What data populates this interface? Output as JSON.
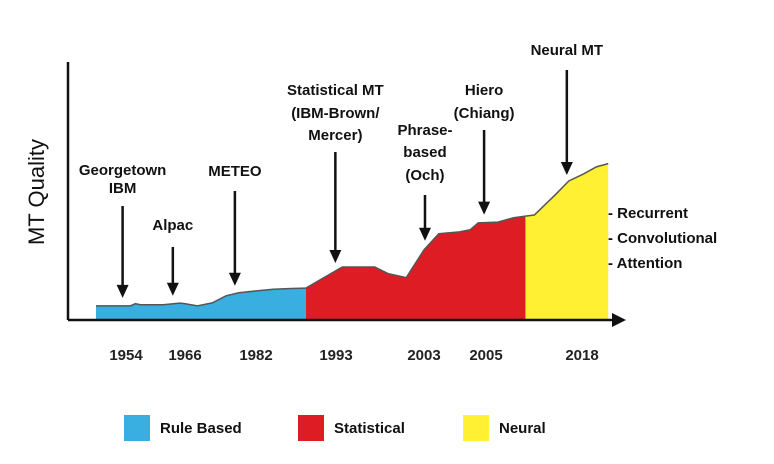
{
  "chart_data": {
    "type": "area",
    "title": "",
    "xlabel": "",
    "ylabel": "MT Quality",
    "x_ticks": [
      "1954",
      "1966",
      "1982",
      "1993",
      "2003",
      "2005",
      "2018"
    ],
    "series": [
      {
        "name": "Rule Based",
        "color": "#39aee0",
        "x": [
          0,
          2.3,
          3.5,
          4.0,
          4.5,
          6.8,
          8.5,
          9.0,
          10.3,
          11.8,
          13.2,
          14.5,
          16.3,
          18.0,
          19.8,
          21.3
        ],
        "y": [
          5.2,
          5.2,
          5.2,
          6.0,
          5.6,
          5.6,
          6.2,
          6.0,
          5.2,
          6.3,
          8.9,
          10.0,
          10.7,
          11.3,
          11.6,
          11.7
        ]
      },
      {
        "name": "Statistical",
        "color": "#de1c24",
        "x": [
          21.3,
          25.0,
          28.3,
          29.7,
          31.5,
          33.3,
          34.8,
          36.9,
          38.0,
          38.8,
          40.8,
          42.4,
          43.6
        ],
        "y": [
          11.7,
          19.5,
          19.5,
          17.0,
          15.6,
          25.8,
          31.7,
          32.4,
          33.2,
          35.7,
          36.0,
          37.6,
          38.2
        ]
      },
      {
        "name": "Neural",
        "color": "#fff033",
        "x": [
          43.6,
          44.5,
          46.7,
          48.0,
          49.5,
          50.8,
          52.0
        ],
        "y": [
          38.2,
          38.6,
          46.3,
          51.1,
          53.7,
          56.3,
          57.5
        ]
      }
    ],
    "annotations": [
      {
        "lines": [
          "Georgetown",
          "IBM"
        ],
        "x": 2.7
      },
      {
        "lines": [
          "Alpac"
        ],
        "x": 7.8
      },
      {
        "lines": [
          "METEO"
        ],
        "x": 14.1
      },
      {
        "lines": [
          "Statistical MT",
          "(IBM-Brown/",
          "Mercer)"
        ],
        "x": 24.3
      },
      {
        "lines": [
          "Phrase-",
          "based",
          "(Och)"
        ],
        "x": 33.4
      },
      {
        "lines": [
          "Hiero",
          "(Chiang)"
        ],
        "x": 39.4
      },
      {
        "lines": [
          "Neural MT"
        ],
        "x": 47.8
      }
    ],
    "side_notes": [
      "- Recurrent",
      "- Convolutional",
      "- Attention"
    ],
    "legend": {
      "placement": "bottom",
      "entries": [
        {
          "label": "Rule Based",
          "color": "#39aee0"
        },
        {
          "label": "Statistical",
          "color": "#de1c24"
        },
        {
          "label": "Neural",
          "color": "#fff033"
        }
      ]
    },
    "grid": false
  }
}
